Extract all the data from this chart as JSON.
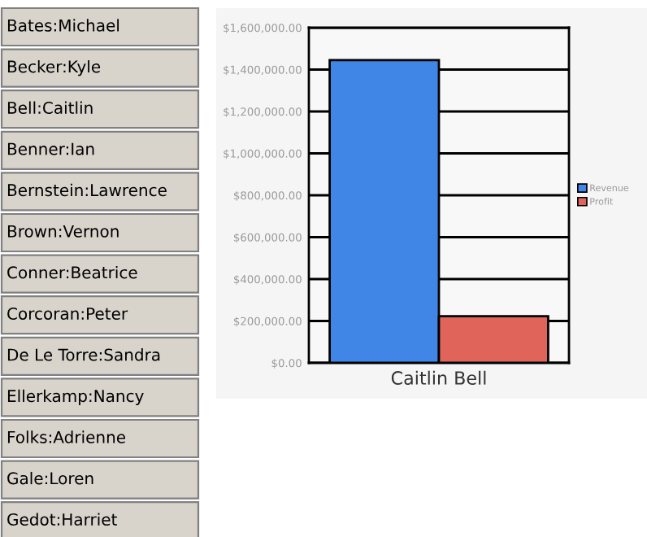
{
  "chart_data": {
    "type": "bar",
    "categories": [
      "Caitlin Bell"
    ],
    "series": [
      {
        "name": "Revenue",
        "color": "#3f86e6",
        "values": [
          1445000
        ]
      },
      {
        "name": "Profit",
        "color": "#e0645a",
        "values": [
          223000
        ]
      }
    ],
    "ylim": [
      0,
      1600000
    ],
    "yticks": [
      {
        "value": 0,
        "label": "$0.00"
      },
      {
        "value": 200000,
        "label": "$200,000.00"
      },
      {
        "value": 400000,
        "label": "$400,000.00"
      },
      {
        "value": 600000,
        "label": "$600,000.00"
      },
      {
        "value": 800000,
        "label": "$800,000.00"
      },
      {
        "value": 1000000,
        "label": "$1,000,000.00"
      },
      {
        "value": 1200000,
        "label": "$1,200,000.00"
      },
      {
        "value": 1400000,
        "label": "$1,400,000.00"
      },
      {
        "value": 1600000,
        "label": "$1,600,000.00"
      }
    ],
    "grid": "y",
    "legend": "right",
    "annotations": [
      "Bates:Michael",
      "Becker:Kyle",
      "Bell:Caitlin",
      "Benner:Ian",
      "Bernstein:Lawrence",
      "Brown:Vernon",
      "Conner:Beatrice",
      "Corcoran:Peter",
      "De Le Torre:Sandra",
      "Ellerkamp:Nancy",
      "Folks:Adrienne",
      "Gale:Loren",
      "Gedot:Harriet"
    ]
  }
}
